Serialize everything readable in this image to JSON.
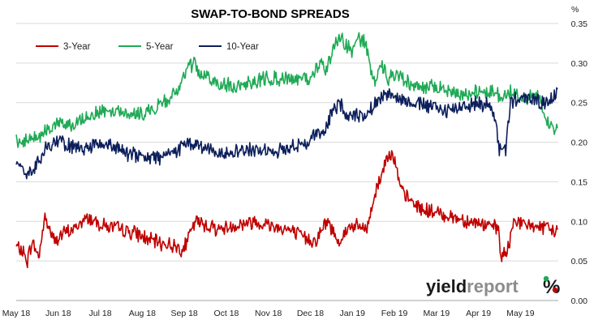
{
  "chart_data": {
    "type": "line",
    "title": "SWAP-TO-BOND SPREADS",
    "y_unit": "%",
    "ylim": [
      0,
      0.35
    ],
    "y_ticks": [
      "0.00",
      "0.05",
      "0.10",
      "0.15",
      "0.20",
      "0.25",
      "0.30",
      "0.35"
    ],
    "x_ticks": [
      "May 18",
      "Jun 18",
      "Jul 18",
      "Aug 18",
      "Sep 18",
      "Oct 18",
      "Nov 18",
      "Dec 18",
      "Jan 19",
      "Feb 19",
      "Mar 19",
      "Apr 19",
      "May 19"
    ],
    "grid": "horizontal",
    "legend_position": "top-left",
    "colors": {
      "3-Year": "#c00000",
      "5-Year": "#1faa55",
      "10-Year": "#0c1f5c"
    },
    "series": [
      {
        "name": "3-Year",
        "knots": [
          [
            0,
            0.068
          ],
          [
            8,
            0.062
          ],
          [
            14,
            0.05
          ],
          [
            20,
            0.075
          ],
          [
            28,
            0.055
          ],
          [
            36,
            0.105
          ],
          [
            48,
            0.075
          ],
          [
            60,
            0.085
          ],
          [
            72,
            0.09
          ],
          [
            90,
            0.105
          ],
          [
            110,
            0.095
          ],
          [
            130,
            0.09
          ],
          [
            150,
            0.085
          ],
          [
            170,
            0.075
          ],
          [
            195,
            0.07
          ],
          [
            210,
            0.065
          ],
          [
            225,
            0.1
          ],
          [
            240,
            0.095
          ],
          [
            255,
            0.09
          ],
          [
            275,
            0.095
          ],
          [
            300,
            0.1
          ],
          [
            320,
            0.095
          ],
          [
            340,
            0.09
          ],
          [
            360,
            0.08
          ],
          [
            375,
            0.075
          ],
          [
            390,
            0.1
          ],
          [
            405,
            0.075
          ],
          [
            420,
            0.095
          ],
          [
            440,
            0.09
          ],
          [
            450,
            0.135
          ],
          [
            460,
            0.165
          ],
          [
            468,
            0.19
          ],
          [
            474,
            0.18
          ],
          [
            482,
            0.14
          ],
          [
            495,
            0.125
          ],
          [
            510,
            0.115
          ],
          [
            530,
            0.11
          ],
          [
            550,
            0.105
          ],
          [
            570,
            0.1
          ],
          [
            590,
            0.095
          ],
          [
            605,
            0.09
          ],
          [
            608,
            0.055
          ],
          [
            616,
            0.06
          ],
          [
            625,
            0.105
          ],
          [
            635,
            0.095
          ],
          [
            650,
            0.095
          ],
          [
            665,
            0.09
          ],
          [
            679,
            0.088
          ]
        ]
      },
      {
        "name": "5-Year",
        "knots": [
          [
            0,
            0.203
          ],
          [
            10,
            0.2
          ],
          [
            20,
            0.205
          ],
          [
            30,
            0.21
          ],
          [
            40,
            0.215
          ],
          [
            55,
            0.225
          ],
          [
            70,
            0.22
          ],
          [
            90,
            0.235
          ],
          [
            110,
            0.24
          ],
          [
            130,
            0.24
          ],
          [
            150,
            0.235
          ],
          [
            170,
            0.24
          ],
          [
            190,
            0.255
          ],
          [
            205,
            0.265
          ],
          [
            212,
            0.29
          ],
          [
            222,
            0.3
          ],
          [
            232,
            0.285
          ],
          [
            250,
            0.275
          ],
          [
            270,
            0.27
          ],
          [
            290,
            0.275
          ],
          [
            310,
            0.28
          ],
          [
            330,
            0.28
          ],
          [
            350,
            0.28
          ],
          [
            370,
            0.28
          ],
          [
            382,
            0.3
          ],
          [
            388,
            0.29
          ],
          [
            395,
            0.31
          ],
          [
            405,
            0.335
          ],
          [
            412,
            0.325
          ],
          [
            420,
            0.315
          ],
          [
            430,
            0.33
          ],
          [
            438,
            0.325
          ],
          [
            445,
            0.29
          ],
          [
            452,
            0.275
          ],
          [
            458,
            0.3
          ],
          [
            465,
            0.28
          ],
          [
            480,
            0.285
          ],
          [
            500,
            0.27
          ],
          [
            520,
            0.27
          ],
          [
            540,
            0.265
          ],
          [
            560,
            0.26
          ],
          [
            580,
            0.265
          ],
          [
            600,
            0.265
          ],
          [
            610,
            0.255
          ],
          [
            620,
            0.265
          ],
          [
            640,
            0.255
          ],
          [
            655,
            0.26
          ],
          [
            662,
            0.24
          ],
          [
            668,
            0.22
          ],
          [
            674,
            0.215
          ],
          [
            679,
            0.225
          ]
        ]
      },
      {
        "name": "10-Year",
        "knots": [
          [
            0,
            0.175
          ],
          [
            10,
            0.16
          ],
          [
            20,
            0.165
          ],
          [
            30,
            0.18
          ],
          [
            40,
            0.195
          ],
          [
            55,
            0.2
          ],
          [
            70,
            0.195
          ],
          [
            85,
            0.19
          ],
          [
            100,
            0.2
          ],
          [
            120,
            0.195
          ],
          [
            140,
            0.185
          ],
          [
            160,
            0.18
          ],
          [
            180,
            0.18
          ],
          [
            200,
            0.19
          ],
          [
            215,
            0.2
          ],
          [
            230,
            0.195
          ],
          [
            250,
            0.185
          ],
          [
            270,
            0.19
          ],
          [
            290,
            0.19
          ],
          [
            310,
            0.19
          ],
          [
            330,
            0.19
          ],
          [
            350,
            0.195
          ],
          [
            365,
            0.2
          ],
          [
            375,
            0.21
          ],
          [
            385,
            0.21
          ],
          [
            395,
            0.235
          ],
          [
            405,
            0.25
          ],
          [
            415,
            0.235
          ],
          [
            425,
            0.235
          ],
          [
            440,
            0.235
          ],
          [
            452,
            0.25
          ],
          [
            462,
            0.26
          ],
          [
            470,
            0.265
          ],
          [
            480,
            0.255
          ],
          [
            500,
            0.25
          ],
          [
            520,
            0.245
          ],
          [
            540,
            0.24
          ],
          [
            560,
            0.245
          ],
          [
            580,
            0.25
          ],
          [
            596,
            0.245
          ],
          [
            602,
            0.225
          ],
          [
            606,
            0.19
          ],
          [
            614,
            0.19
          ],
          [
            620,
            0.25
          ],
          [
            630,
            0.255
          ],
          [
            645,
            0.255
          ],
          [
            660,
            0.25
          ],
          [
            672,
            0.255
          ],
          [
            679,
            0.265
          ]
        ]
      }
    ]
  },
  "brand": {
    "part1": "yield",
    "part2": "report",
    "part3": "%"
  }
}
